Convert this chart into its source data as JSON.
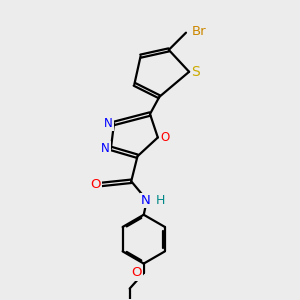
{
  "bg_color": "#ececec",
  "bond_color": "#000000",
  "bond_width": 1.6,
  "dbo": 0.055,
  "atom_colors": {
    "N": "#0000ff",
    "O": "#ff0000",
    "S": "#ccaa00",
    "Br": "#cc8800",
    "C": "#000000",
    "H": "#008888"
  },
  "font_size": 8.5,
  "fig_size": [
    3.0,
    3.0
  ],
  "dpi": 100
}
